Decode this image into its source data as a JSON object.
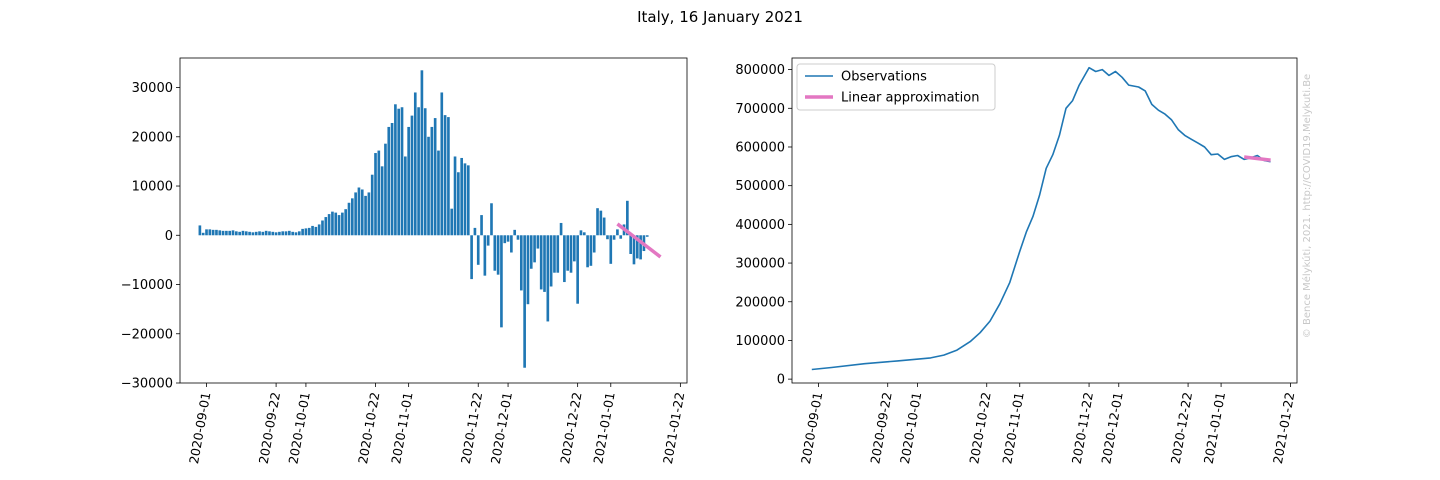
{
  "title": "Italy, 16 January 2021",
  "watermark": "© Bence Mélykúti, 2021. http://COVID19.Melykuti.Be",
  "chart_data": [
    {
      "type": "bar",
      "title": "",
      "xlabel": "",
      "ylabel": "",
      "x_start": "2020-08-30",
      "x_step_days": 1,
      "xlim": [
        "2020-08-24",
        "2021-01-24"
      ],
      "ylim": [
        -30000,
        36000
      ],
      "xticks": [
        "2020-09-01",
        "2020-09-22",
        "2020-10-01",
        "2020-10-22",
        "2020-11-01",
        "2020-11-22",
        "2020-12-01",
        "2020-12-22",
        "2021-01-01",
        "2021-01-22"
      ],
      "yticks": [
        30000,
        20000,
        10000,
        0,
        -10000,
        -20000,
        -30000
      ],
      "ytick_labels": [
        "30000",
        "20000",
        "10000",
        "0",
        "−10000",
        "−20000",
        "−30000"
      ],
      "bar_color": "#1f77b4",
      "values": [
        2000,
        500,
        1200,
        1200,
        1100,
        1100,
        1000,
        900,
        900,
        900,
        1000,
        800,
        700,
        900,
        800,
        700,
        600,
        700,
        800,
        700,
        900,
        800,
        700,
        600,
        700,
        800,
        800,
        900,
        700,
        600,
        800,
        1300,
        1400,
        1500,
        1900,
        1700,
        2200,
        3000,
        3700,
        4300,
        4800,
        4600,
        4100,
        4600,
        5300,
        6600,
        7500,
        8700,
        9700,
        9300,
        8000,
        8700,
        12300,
        16700,
        17200,
        14000,
        18600,
        22000,
        22800,
        26600,
        25700,
        26000,
        16000,
        22000,
        24300,
        29000,
        26000,
        33500,
        25800,
        20000,
        22000,
        23800,
        17200,
        29000,
        24400,
        24000,
        5400,
        16000,
        12800,
        15700,
        14600,
        14200,
        -8900,
        1500,
        -6000,
        4100,
        -8200,
        -2100,
        6500,
        -7200,
        -8000,
        -18700,
        -1600,
        -1300,
        -3500,
        1100,
        -900,
        -11200,
        -26900,
        -14000,
        -6800,
        -5500,
        -2700,
        -11000,
        -11500,
        -17500,
        -10400,
        -7600,
        -7600,
        2500,
        -9500,
        -7200,
        -7600,
        -5300,
        -13900,
        1000,
        600,
        -6500,
        -6200,
        -3500,
        5500,
        5000,
        3600,
        -800,
        -5800,
        -900,
        1200,
        -700,
        2200,
        7000,
        -3800,
        -5900,
        -4700,
        -4900,
        -3200,
        -300
      ],
      "trend": {
        "name": "Linear approximation",
        "color": "#e377c2",
        "x": [
          "2021-01-03",
          "2021-01-16"
        ],
        "y": [
          2300,
          -4400
        ]
      }
    },
    {
      "type": "line",
      "title": "",
      "xlabel": "",
      "ylabel": "",
      "xlim": [
        "2020-08-24",
        "2021-01-24"
      ],
      "ylim": [
        -10000,
        830000
      ],
      "xticks": [
        "2020-09-01",
        "2020-09-22",
        "2020-10-01",
        "2020-10-22",
        "2020-11-01",
        "2020-11-22",
        "2020-12-01",
        "2020-12-22",
        "2021-01-01",
        "2021-01-22"
      ],
      "yticks": [
        0,
        100000,
        200000,
        300000,
        400000,
        500000,
        600000,
        700000,
        800000
      ],
      "legend": {
        "position": "top-left",
        "entries": [
          "Observations",
          "Linear approximation"
        ]
      },
      "series": [
        {
          "name": "Observations",
          "color": "#1f77b4",
          "points": [
            [
              "2020-08-30",
              25000
            ],
            [
              "2020-09-05",
              30000
            ],
            [
              "2020-09-15",
              40000
            ],
            [
              "2020-09-25",
              47000
            ],
            [
              "2020-10-05",
              55000
            ],
            [
              "2020-10-09",
              62000
            ],
            [
              "2020-10-13",
              75000
            ],
            [
              "2020-10-17",
              97000
            ],
            [
              "2020-10-20",
              120000
            ],
            [
              "2020-10-23",
              150000
            ],
            [
              "2020-10-26",
              195000
            ],
            [
              "2020-10-29",
              250000
            ],
            [
              "2020-11-01",
              330000
            ],
            [
              "2020-11-03",
              380000
            ],
            [
              "2020-11-05",
              420000
            ],
            [
              "2020-11-07",
              475000
            ],
            [
              "2020-11-09",
              545000
            ],
            [
              "2020-11-11",
              580000
            ],
            [
              "2020-11-13",
              630000
            ],
            [
              "2020-11-15",
              700000
            ],
            [
              "2020-11-17",
              720000
            ],
            [
              "2020-11-19",
              760000
            ],
            [
              "2020-11-21",
              790000
            ],
            [
              "2020-11-22",
              805000
            ],
            [
              "2020-11-24",
              795000
            ],
            [
              "2020-11-26",
              800000
            ],
            [
              "2020-11-28",
              785000
            ],
            [
              "2020-11-30",
              795000
            ],
            [
              "2020-12-02",
              780000
            ],
            [
              "2020-12-04",
              760000
            ],
            [
              "2020-12-07",
              755000
            ],
            [
              "2020-12-09",
              745000
            ],
            [
              "2020-12-11",
              710000
            ],
            [
              "2020-12-13",
              695000
            ],
            [
              "2020-12-15",
              685000
            ],
            [
              "2020-12-17",
              670000
            ],
            [
              "2020-12-19",
              645000
            ],
            [
              "2020-12-21",
              630000
            ],
            [
              "2020-12-23",
              620000
            ],
            [
              "2020-12-25",
              610000
            ],
            [
              "2020-12-27",
              600000
            ],
            [
              "2020-12-29",
              580000
            ],
            [
              "2020-12-31",
              582000
            ],
            [
              "2021-01-02",
              568000
            ],
            [
              "2021-01-04",
              575000
            ],
            [
              "2021-01-06",
              578000
            ],
            [
              "2021-01-08",
              568000
            ],
            [
              "2021-01-10",
              572000
            ],
            [
              "2021-01-12",
              578000
            ],
            [
              "2021-01-14",
              565000
            ],
            [
              "2021-01-16",
              562000
            ]
          ]
        },
        {
          "name": "Linear approximation",
          "color": "#e377c2",
          "points": [
            [
              "2021-01-08",
              574000
            ],
            [
              "2021-01-16",
              566000
            ]
          ]
        }
      ]
    }
  ]
}
